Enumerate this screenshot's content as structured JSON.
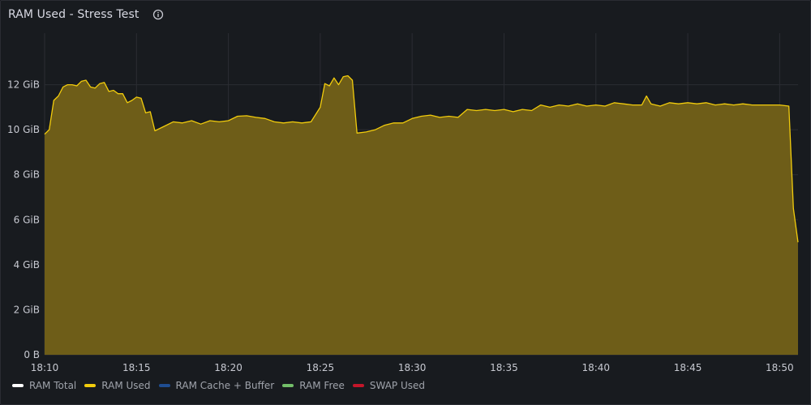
{
  "panel": {
    "title": "RAM Used - Stress Test",
    "info_icon": "info-circle-icon"
  },
  "colors": {
    "background": "#181b1f",
    "grid": "#2b2d33",
    "ram_used_line": "#f2cc0c",
    "ram_used_fill": "#6e5d18"
  },
  "chart_data": {
    "type": "area",
    "x_unit": "time (HH:MM)",
    "y_unit": "GiB",
    "ylim": [
      0,
      14
    ],
    "xlim": [
      "18:10",
      "18:51"
    ],
    "y_ticks": [
      "0 B",
      "2 GiB",
      "4 GiB",
      "6 GiB",
      "8 GiB",
      "10 GiB",
      "12 GiB"
    ],
    "x_ticks": [
      "18:10",
      "18:15",
      "18:20",
      "18:25",
      "18:30",
      "18:35",
      "18:40",
      "18:45",
      "18:50"
    ],
    "grid": true,
    "legend_placement": "bottom-left",
    "legend": [
      {
        "name": "RAM Total",
        "color": "#ffffff"
      },
      {
        "name": "RAM Used",
        "color": "#f2cc0c"
      },
      {
        "name": "RAM Cache + Buffer",
        "color": "#1f4d91"
      },
      {
        "name": "RAM Free",
        "color": "#73bf69"
      },
      {
        "name": "SWAP Used",
        "color": "#c4162a"
      }
    ],
    "series": [
      {
        "name": "RAM Used",
        "color": "#f2cc0c",
        "points": [
          [
            "18:10:00",
            9.8
          ],
          [
            "18:10:15",
            10.0
          ],
          [
            "18:10:30",
            11.3
          ],
          [
            "18:10:45",
            11.5
          ],
          [
            "18:11:00",
            11.9
          ],
          [
            "18:11:15",
            12.0
          ],
          [
            "18:11:30",
            12.0
          ],
          [
            "18:11:45",
            11.95
          ],
          [
            "18:12:00",
            12.15
          ],
          [
            "18:12:15",
            12.2
          ],
          [
            "18:12:30",
            11.9
          ],
          [
            "18:12:45",
            11.85
          ],
          [
            "18:13:00",
            12.05
          ],
          [
            "18:13:15",
            12.1
          ],
          [
            "18:13:30",
            11.7
          ],
          [
            "18:13:45",
            11.75
          ],
          [
            "18:14:00",
            11.6
          ],
          [
            "18:14:15",
            11.6
          ],
          [
            "18:14:30",
            11.2
          ],
          [
            "18:14:45",
            11.3
          ],
          [
            "18:15:00",
            11.45
          ],
          [
            "18:15:15",
            11.4
          ],
          [
            "18:15:30",
            10.75
          ],
          [
            "18:15:45",
            10.8
          ],
          [
            "18:16:00",
            9.95
          ],
          [
            "18:16:30",
            10.15
          ],
          [
            "18:17:00",
            10.35
          ],
          [
            "18:17:30",
            10.3
          ],
          [
            "18:18:00",
            10.4
          ],
          [
            "18:18:30",
            10.25
          ],
          [
            "18:19:00",
            10.4
          ],
          [
            "18:19:30",
            10.35
          ],
          [
            "18:20:00",
            10.4
          ],
          [
            "18:20:30",
            10.6
          ],
          [
            "18:21:00",
            10.62
          ],
          [
            "18:21:30",
            10.55
          ],
          [
            "18:22:00",
            10.5
          ],
          [
            "18:22:30",
            10.35
          ],
          [
            "18:23:00",
            10.3
          ],
          [
            "18:23:30",
            10.35
          ],
          [
            "18:24:00",
            10.3
          ],
          [
            "18:24:30",
            10.35
          ],
          [
            "18:25:00",
            11.0
          ],
          [
            "18:25:15",
            12.05
          ],
          [
            "18:25:30",
            11.95
          ],
          [
            "18:25:45",
            12.3
          ],
          [
            "18:26:00",
            12.0
          ],
          [
            "18:26:15",
            12.35
          ],
          [
            "18:26:30",
            12.4
          ],
          [
            "18:26:45",
            12.2
          ],
          [
            "18:27:00",
            9.85
          ],
          [
            "18:27:30",
            9.9
          ],
          [
            "18:28:00",
            10.0
          ],
          [
            "18:28:30",
            10.2
          ],
          [
            "18:29:00",
            10.3
          ],
          [
            "18:29:30",
            10.3
          ],
          [
            "18:30:00",
            10.5
          ],
          [
            "18:30:30",
            10.6
          ],
          [
            "18:31:00",
            10.65
          ],
          [
            "18:31:30",
            10.55
          ],
          [
            "18:32:00",
            10.6
          ],
          [
            "18:32:30",
            10.55
          ],
          [
            "18:33:00",
            10.9
          ],
          [
            "18:33:30",
            10.85
          ],
          [
            "18:34:00",
            10.9
          ],
          [
            "18:34:30",
            10.85
          ],
          [
            "18:35:00",
            10.9
          ],
          [
            "18:35:30",
            10.8
          ],
          [
            "18:36:00",
            10.9
          ],
          [
            "18:36:30",
            10.85
          ],
          [
            "18:37:00",
            11.1
          ],
          [
            "18:37:30",
            11.0
          ],
          [
            "18:38:00",
            11.1
          ],
          [
            "18:38:30",
            11.05
          ],
          [
            "18:39:00",
            11.15
          ],
          [
            "18:39:30",
            11.05
          ],
          [
            "18:40:00",
            11.1
          ],
          [
            "18:40:30",
            11.05
          ],
          [
            "18:41:00",
            11.2
          ],
          [
            "18:41:30",
            11.15
          ],
          [
            "18:42:00",
            11.1
          ],
          [
            "18:42:30",
            11.1
          ],
          [
            "18:42:45",
            11.5
          ],
          [
            "18:43:00",
            11.15
          ],
          [
            "18:43:30",
            11.05
          ],
          [
            "18:44:00",
            11.2
          ],
          [
            "18:44:30",
            11.15
          ],
          [
            "18:45:00",
            11.2
          ],
          [
            "18:45:30",
            11.15
          ],
          [
            "18:46:00",
            11.2
          ],
          [
            "18:46:30",
            11.1
          ],
          [
            "18:47:00",
            11.15
          ],
          [
            "18:47:30",
            11.1
          ],
          [
            "18:48:00",
            11.15
          ],
          [
            "18:48:30",
            11.1
          ],
          [
            "18:49:00",
            11.1
          ],
          [
            "18:49:30",
            11.1
          ],
          [
            "18:50:00",
            11.1
          ],
          [
            "18:50:30",
            11.05
          ],
          [
            "18:50:45",
            6.5
          ],
          [
            "18:51:00",
            5.0
          ]
        ]
      }
    ]
  }
}
